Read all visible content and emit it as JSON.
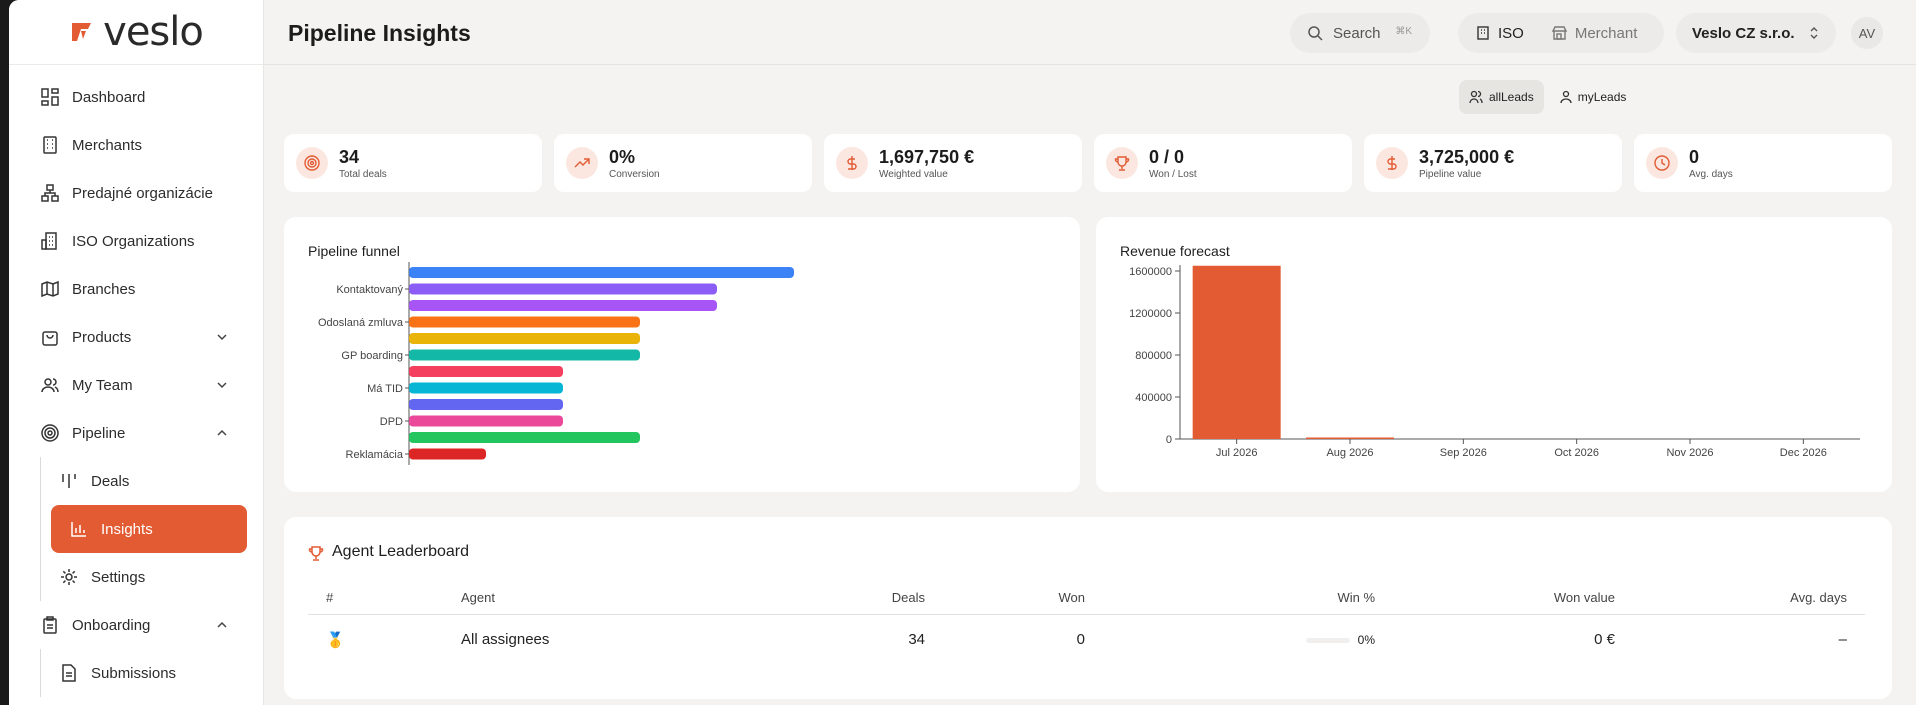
{
  "brand": {
    "name": "veslo",
    "accent": "#e25b33"
  },
  "sidebar": {
    "items": [
      {
        "label": "Dashboard",
        "icon": "dashboard-icon"
      },
      {
        "label": "Merchants",
        "icon": "building-icon"
      },
      {
        "label": "Predajné organizácie",
        "icon": "org-tree-icon"
      },
      {
        "label": "ISO Organizations",
        "icon": "office-icon"
      },
      {
        "label": "Branches",
        "icon": "map-icon"
      },
      {
        "label": "Products",
        "icon": "bag-icon",
        "expandable": true
      },
      {
        "label": "My Team",
        "icon": "users-icon",
        "expandable": true
      },
      {
        "label": "Pipeline",
        "icon": "target-icon",
        "expanded": true
      }
    ],
    "pipeline_sub": [
      {
        "label": "Deals",
        "icon": "kanban-icon"
      },
      {
        "label": "Insights",
        "icon": "bar-chart-icon",
        "active": true
      },
      {
        "label": "Settings",
        "icon": "gear-icon"
      }
    ],
    "onboarding": {
      "label": "Onboarding",
      "icon": "clipboard-icon"
    },
    "onboarding_sub": [
      {
        "label": "Submissions",
        "icon": "document-icon"
      }
    ]
  },
  "header": {
    "title": "Pipeline Insights",
    "search_label": "Search",
    "search_shortcut": "⌘K",
    "scope": {
      "iso_label": "ISO",
      "merchant_label": "Merchant",
      "selected": "ISO"
    },
    "org_name": "Veslo CZ s.r.o.",
    "avatar_initials": "AV"
  },
  "leads_toggle": {
    "all_label": "allLeads",
    "my_label": "myLeads",
    "selected": "allLeads"
  },
  "kpis": [
    {
      "value": "34",
      "label": "Total deals",
      "icon": "target-icon"
    },
    {
      "value": "0%",
      "label": "Conversion",
      "icon": "trend-up-icon"
    },
    {
      "value": "1,697,750 €",
      "label": "Weighted value",
      "icon": "dollar-icon"
    },
    {
      "value": "0 / 0",
      "label": "Won / Lost",
      "icon": "trophy-icon"
    },
    {
      "value": "3,725,000 €",
      "label": "Pipeline value",
      "icon": "dollar-icon"
    },
    {
      "value": "0",
      "label": "Avg. days",
      "icon": "clock-icon"
    }
  ],
  "chart_data": [
    {
      "type": "bar",
      "orientation": "horizontal",
      "title": "Pipeline funnel",
      "tick_labels": [
        "Kontaktovaný",
        "Odoslaná zmluva",
        "GP boarding",
        "Má TID",
        "DPD",
        "Reklamácia"
      ],
      "bars": [
        {
          "color": "#3b82f6",
          "value": 10
        },
        {
          "color": "#8b5cf6",
          "value": 8
        },
        {
          "color": "#a855f7",
          "value": 8
        },
        {
          "color": "#f97316",
          "value": 6
        },
        {
          "color": "#eab308",
          "value": 6
        },
        {
          "color": "#14b8a6",
          "value": 6
        },
        {
          "color": "#f43f5e",
          "value": 4
        },
        {
          "color": "#06b6d4",
          "value": 4
        },
        {
          "color": "#6366f1",
          "value": 4
        },
        {
          "color": "#ec4899",
          "value": 4
        },
        {
          "color": "#22c55e",
          "value": 6
        },
        {
          "color": "#dc2626",
          "value": 2
        }
      ],
      "xlim": [
        0,
        17
      ]
    },
    {
      "type": "bar",
      "title": "Revenue forecast",
      "categories": [
        "Jul 2026",
        "Aug 2026",
        "Sep 2026",
        "Oct 2026",
        "Nov 2026",
        "Dec 2026"
      ],
      "values": [
        1650000,
        12000,
        0,
        0,
        0,
        0
      ],
      "yticks": [
        "0",
        "400000",
        "800000",
        "1200000",
        "1600000"
      ],
      "ylim": [
        0,
        1600000
      ],
      "color": "#e25b33"
    }
  ],
  "leaderboard": {
    "title": "Agent Leaderboard",
    "columns": [
      "#",
      "Agent",
      "Deals",
      "Won",
      "Win %",
      "Won value",
      "Avg. days"
    ],
    "rows": [
      {
        "rank": "🥇",
        "agent": "All assignees",
        "deals": "34",
        "won": "0",
        "win_pct": "0%",
        "won_value": "0 €",
        "avg_days": "–"
      }
    ]
  }
}
